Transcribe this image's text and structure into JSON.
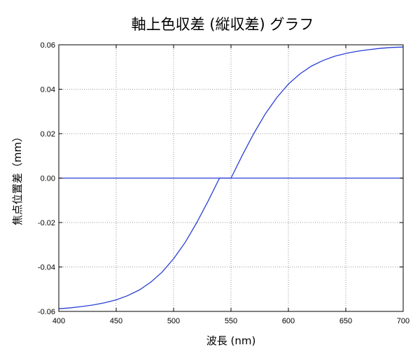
{
  "chart_data": {
    "type": "line",
    "title": "軸上色収差 (縦収差) グラフ",
    "xlabel": "波長 (nm)",
    "ylabel": "焦点位置差（mm）",
    "xlim": [
      400,
      700
    ],
    "ylim": [
      -0.06,
      0.06
    ],
    "xticks": [
      "400",
      "450",
      "500",
      "550",
      "600",
      "650",
      "700"
    ],
    "yticks": [
      "0.06",
      "0.04",
      "0.02",
      "0.00",
      "-0.02",
      "-0.04",
      "-0.06"
    ],
    "grid": true,
    "series": [
      {
        "color": "#2a3fd6",
        "x": [
          400,
          410,
          420,
          430,
          440,
          450,
          460,
          470,
          480,
          490,
          500,
          510,
          520,
          530,
          540,
          550,
          560,
          570,
          580,
          590,
          600,
          610,
          620,
          630,
          640,
          650,
          660,
          670,
          680,
          690,
          700
        ],
        "y": [
          -0.0588,
          -0.0584,
          -0.0578,
          -0.0571,
          -0.0561,
          -0.0548,
          -0.0529,
          -0.0504,
          -0.0469,
          -0.0423,
          -0.0363,
          -0.029,
          -0.0202,
          -0.0104,
          0.0,
          0.0,
          0.0104,
          0.0202,
          0.029,
          0.0363,
          0.0423,
          0.0469,
          0.0504,
          0.0529,
          0.0548,
          0.0561,
          0.0571,
          0.0578,
          0.0584,
          0.0588,
          0.059
        ]
      },
      {
        "color": "#2a3fd6",
        "x": [
          400,
          700
        ],
        "y": [
          0.0,
          0.0
        ]
      }
    ]
  }
}
